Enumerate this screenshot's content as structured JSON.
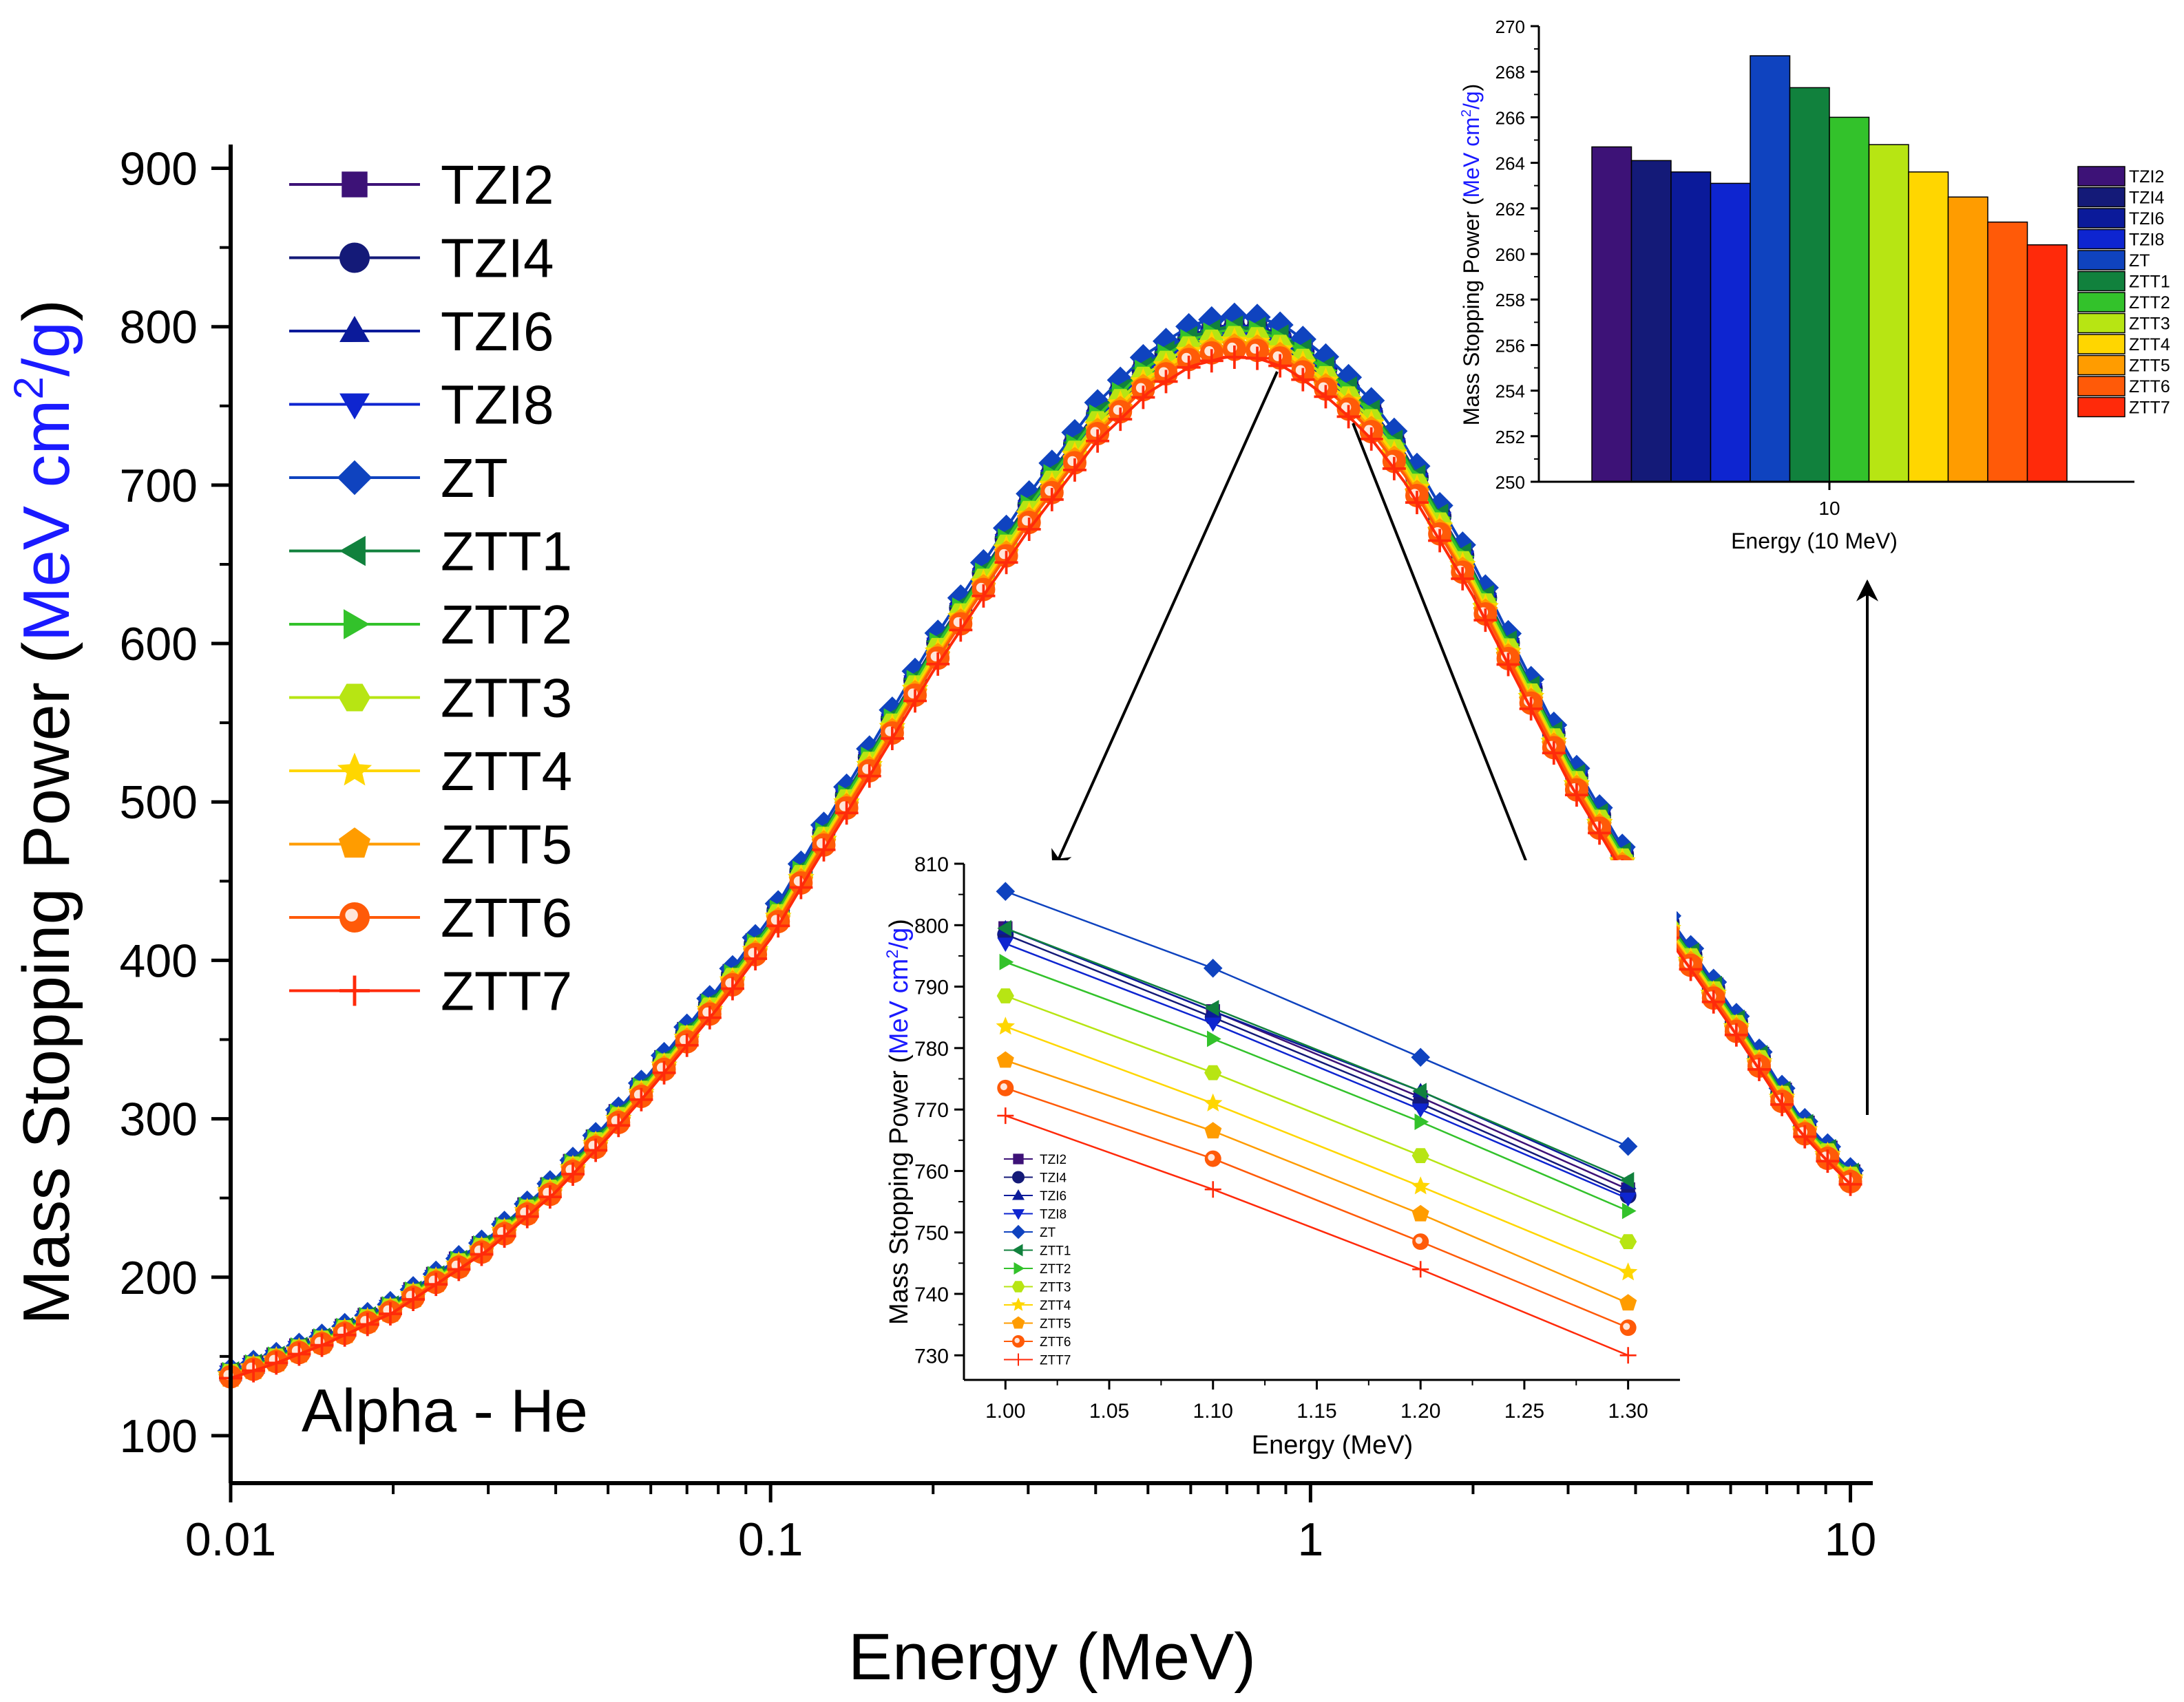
{
  "series_names": [
    "TZI2",
    "TZI4",
    "TZI6",
    "TZI8",
    "ZT",
    "ZTT1",
    "ZTT2",
    "ZTT3",
    "ZTT4",
    "ZTT5",
    "ZTT6",
    "ZTT7"
  ],
  "series_colors": [
    "#3d1277",
    "#141a78",
    "#0b1a9a",
    "#0e25d0",
    "#0f43bf",
    "#11813d",
    "#33c22b",
    "#b7e513",
    "#ffd600",
    "#ff9c00",
    "#ff5a08",
    "#ff2a0a"
  ],
  "series_markers": [
    "square",
    "circle",
    "triangle-up",
    "triangle-down",
    "diamond",
    "triangle-left",
    "triangle-right",
    "hexagon",
    "star",
    "pentagon",
    "sphere",
    "plus"
  ],
  "chart_data": [
    {
      "id": "main",
      "type": "line",
      "xlabel": "Energy (MeV)",
      "ylabel_parts": [
        "Mass Stopping Power (",
        "MeV cm",
        "2",
        "/g",
        ")"
      ],
      "x_scale": "log",
      "xlim": [
        0.01,
        11
      ],
      "ylim": [
        70,
        915
      ],
      "xticks": [
        0.01,
        0.1,
        1,
        10
      ],
      "xtick_labels": [
        "0.01",
        "0.1",
        "1",
        "10"
      ],
      "yticks": [
        100,
        200,
        300,
        400,
        500,
        600,
        700,
        800,
        900
      ],
      "annotation": "Alpha - He",
      "profile_x": [
        0.01,
        0.012,
        0.015,
        0.02,
        0.03,
        0.04,
        0.05,
        0.06,
        0.08,
        0.1,
        0.12,
        0.15,
        0.2,
        0.25,
        0.3,
        0.4,
        0.5,
        0.6,
        0.7,
        0.8,
        0.9,
        1.0,
        1.1,
        1.2,
        1.3,
        1.5,
        2.0,
        2.5,
        3.0,
        4.0,
        5.0,
        6.0,
        7.0,
        8.0,
        9.0,
        10.0
      ],
      "profile_y": [
        138,
        147,
        160,
        180,
        220,
        257,
        292,
        323,
        375,
        419,
        465,
        519,
        590,
        640,
        680,
        736,
        768,
        785,
        791,
        790,
        784,
        773,
        762,
        750,
        738,
        710,
        638,
        573,
        520,
        448,
        402,
        363,
        328,
        297,
        278,
        262
      ],
      "series_offsets": [
        9,
        8,
        10,
        5,
        16,
        9,
        7,
        3,
        0,
        -3,
        -5,
        -10
      ],
      "marker_x_range": [
        0.01,
        10
      ],
      "marker_count": 72
    },
    {
      "id": "inset_line",
      "type": "line",
      "xlabel": "Energy (MeV)",
      "ylabel_parts": [
        "Mass Stopping Power (",
        "MeV cm",
        "2",
        "/g",
        ")"
      ],
      "x": [
        1.0,
        1.1,
        1.2,
        1.3
      ],
      "xlim": [
        0.98,
        1.325
      ],
      "ylim": [
        726,
        810
      ],
      "xticks": [
        1.0,
        1.05,
        1.1,
        1.15,
        1.2,
        1.25,
        1.3
      ],
      "xtick_labels": [
        "1.00",
        "1.05",
        "1.10",
        "1.15",
        "1.20",
        "1.25",
        "1.30"
      ],
      "yticks": [
        730,
        740,
        750,
        760,
        770,
        780,
        790,
        800,
        810
      ],
      "series": [
        {
          "name": "TZI2",
          "values": [
            799.5,
            786.0,
            772.0,
            757.0
          ]
        },
        {
          "name": "TZI4",
          "values": [
            798.5,
            785.0,
            771.0,
            756.0
          ]
        },
        {
          "name": "TZI6",
          "values": [
            799.5,
            786.0,
            773.0,
            758.0
          ]
        },
        {
          "name": "TZI8",
          "values": [
            797.0,
            784.0,
            770.0,
            755.5
          ]
        },
        {
          "name": "ZT",
          "values": [
            805.5,
            793.0,
            778.5,
            764.0
          ]
        },
        {
          "name": "ZTT1",
          "values": [
            799.5,
            786.5,
            773.0,
            758.5
          ]
        },
        {
          "name": "ZTT2",
          "values": [
            794.0,
            781.5,
            768.0,
            753.5
          ]
        },
        {
          "name": "ZTT3",
          "values": [
            788.5,
            776.0,
            762.5,
            748.5
          ]
        },
        {
          "name": "ZTT4",
          "values": [
            783.5,
            771.0,
            757.5,
            743.5
          ]
        },
        {
          "name": "ZTT5",
          "values": [
            778.0,
            766.5,
            753.0,
            738.5
          ]
        },
        {
          "name": "ZTT6",
          "values": [
            773.5,
            762.0,
            748.5,
            734.5
          ]
        },
        {
          "name": "ZTT7",
          "values": [
            769.0,
            757.0,
            744.0,
            730.0
          ]
        }
      ]
    },
    {
      "id": "inset_bar",
      "type": "bar",
      "xlabel": "Energy (10 MeV)",
      "ylabel_parts": [
        "Mass Stopping Power (",
        "MeV cm",
        "2",
        "/g",
        ")"
      ],
      "xtick_labels": [
        "10"
      ],
      "ylim": [
        250,
        270
      ],
      "yticks": [
        250,
        252,
        254,
        256,
        258,
        260,
        262,
        264,
        266,
        268,
        270
      ],
      "categories": [
        "TZI2",
        "TZI4",
        "TZI6",
        "TZI8",
        "ZT",
        "ZTT1",
        "ZTT2",
        "ZTT3",
        "ZTT4",
        "ZTT5",
        "ZTT6",
        "ZTT7"
      ],
      "values": [
        264.7,
        264.1,
        263.6,
        263.1,
        268.7,
        267.3,
        266.0,
        264.8,
        263.6,
        262.5,
        261.4,
        260.4
      ]
    }
  ]
}
